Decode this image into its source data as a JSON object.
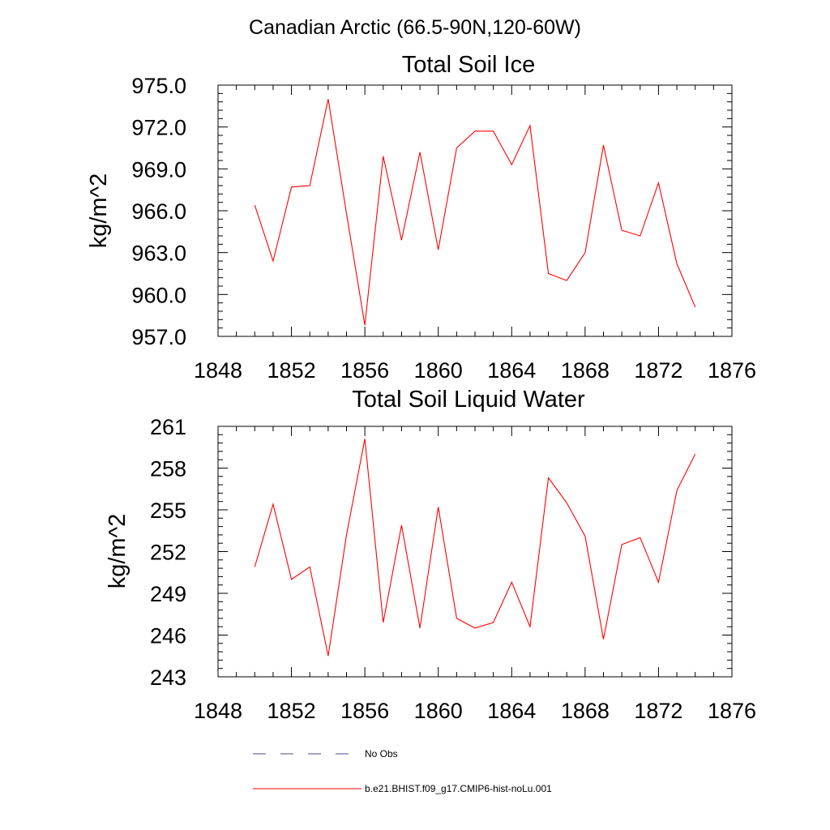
{
  "page_title": "Canadian Arctic (66.5-90N,120-60W)",
  "legend": [
    {
      "label": "No Obs",
      "color": "#4a4a8c",
      "style": "dashed"
    },
    {
      "label": "b.e21.BHIST.f09_g17.CMIP6-hist-noLu.001",
      "color": "#ff0000",
      "style": "solid"
    }
  ],
  "chart_data": [
    {
      "type": "line",
      "title": "Total Soil Ice",
      "ylabel": "kg/m^2",
      "xlabel": "",
      "xlim": [
        1848,
        1876
      ],
      "ylim": [
        957,
        975
      ],
      "xticks": [
        1848,
        1852,
        1856,
        1860,
        1864,
        1868,
        1872,
        1876
      ],
      "yticks": [
        "957.0",
        "960.0",
        "963.0",
        "966.0",
        "969.0",
        "972.0",
        "975.0"
      ],
      "grid": false,
      "series": [
        {
          "color": "#ff0000",
          "x": [
            1850,
            1851,
            1852,
            1853,
            1854,
            1855,
            1856,
            1857,
            1858,
            1859,
            1860,
            1861,
            1862,
            1863,
            1864,
            1865,
            1866,
            1867,
            1868,
            1869,
            1870,
            1871,
            1872,
            1873,
            1874
          ],
          "values": [
            966.4,
            962.4,
            967.7,
            967.8,
            974.0,
            965.8,
            957.8,
            969.9,
            963.9,
            970.2,
            963.2,
            970.5,
            971.7,
            971.7,
            969.3,
            972.1,
            961.5,
            961.0,
            963.0,
            970.7,
            964.6,
            964.2,
            968.0,
            962.2,
            959.1
          ]
        }
      ]
    },
    {
      "type": "line",
      "title": "Total Soil Liquid Water",
      "ylabel": "kg/m^2",
      "xlabel": "",
      "xlim": [
        1848,
        1876
      ],
      "ylim": [
        243,
        261
      ],
      "xticks": [
        1848,
        1852,
        1856,
        1860,
        1864,
        1868,
        1872,
        1876
      ],
      "yticks": [
        "243",
        "246",
        "249",
        "252",
        "255",
        "258",
        "261"
      ],
      "grid": false,
      "series": [
        {
          "color": "#ff0000",
          "x": [
            1850,
            1851,
            1852,
            1853,
            1854,
            1855,
            1856,
            1857,
            1858,
            1859,
            1860,
            1861,
            1862,
            1863,
            1864,
            1865,
            1866,
            1867,
            1868,
            1869,
            1870,
            1871,
            1872,
            1873,
            1874
          ],
          "values": [
            250.9,
            255.4,
            250.0,
            250.9,
            244.5,
            253.2,
            260.1,
            246.9,
            253.9,
            246.5,
            255.2,
            247.2,
            246.5,
            246.9,
            249.8,
            246.6,
            257.3,
            255.5,
            253.1,
            245.7,
            252.5,
            253.0,
            249.8,
            256.4,
            259.0
          ]
        }
      ]
    }
  ]
}
